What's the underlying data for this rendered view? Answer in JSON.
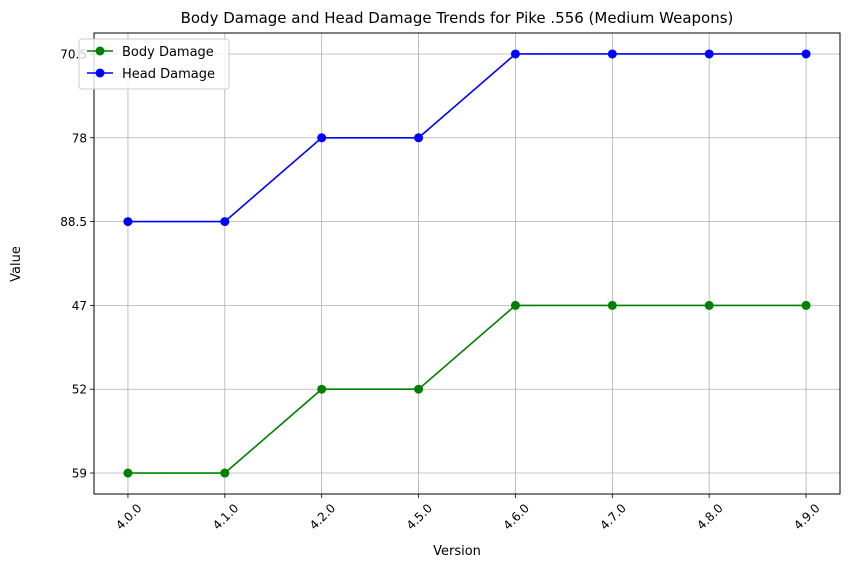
{
  "chart_data": {
    "type": "line",
    "title": "Body Damage and Head Damage Trends for Pike .556 (Medium Weapons)",
    "xlabel": "Version",
    "ylabel": "Value",
    "categories": [
      "4.0.0",
      "4.1.0",
      "4.2.0",
      "4.5.0",
      "4.6.0",
      "4.7.0",
      "4.8.0",
      "4.9.0"
    ],
    "y_tick_labels": [
      "59",
      "52",
      "47",
      "88.5",
      "78",
      "70.5"
    ],
    "series": [
      {
        "name": "Body Damage",
        "color": "#008000",
        "values": [
          "59",
          "59",
          "52",
          "52",
          "47",
          "47",
          "47",
          "47"
        ]
      },
      {
        "name": "Head Damage",
        "color": "#0000ff",
        "values": [
          "88.5",
          "88.5",
          "78",
          "78",
          "70.5",
          "70.5",
          "70.5",
          "70.5"
        ]
      }
    ],
    "grid": true,
    "legend_position": "top-left",
    "x_tick_rotation_deg": 45
  }
}
